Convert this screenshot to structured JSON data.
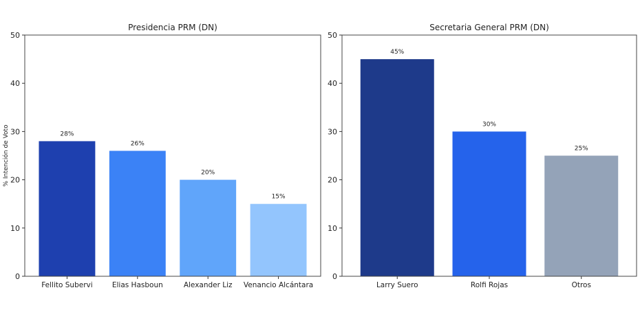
{
  "chart_data": [
    {
      "type": "bar",
      "title": "Presidencia PRM (DN)",
      "ylabel": "% Intención de Voto",
      "xlabel": "",
      "ylim": [
        0,
        50
      ],
      "yticks": [
        0,
        10,
        20,
        30,
        40,
        50
      ],
      "grid": false,
      "categories": [
        "Fellito Subervi",
        "Elias Hasboun",
        "Alexander Liz",
        "Venancio Alcántara"
      ],
      "values": [
        28,
        26,
        20,
        15
      ],
      "data_labels": [
        "28%",
        "26%",
        "20%",
        "15%"
      ],
      "colors": [
        "#1e40af",
        "#3b82f6",
        "#60a5fa",
        "#93c5fd"
      ]
    },
    {
      "type": "bar",
      "title": "Secretaria General PRM (DN)",
      "ylabel": "",
      "xlabel": "",
      "ylim": [
        0,
        50
      ],
      "yticks": [
        0,
        10,
        20,
        30,
        40,
        50
      ],
      "grid": false,
      "categories": [
        "Larry Suero",
        "Rolfi Rojas",
        "Otros"
      ],
      "values": [
        45,
        30,
        25
      ],
      "data_labels": [
        "45%",
        "30%",
        "25%"
      ],
      "colors": [
        "#1e3a8a",
        "#2563eb",
        "#94a3b8"
      ]
    }
  ]
}
